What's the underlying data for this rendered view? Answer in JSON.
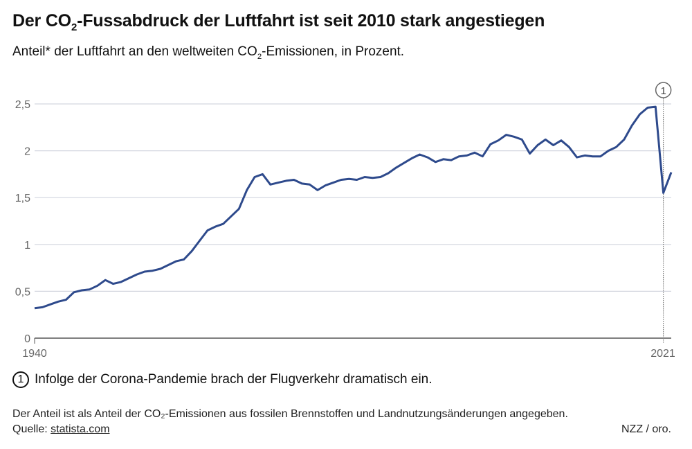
{
  "title_pre": "Der CO",
  "title_sub": "2",
  "title_post": "-Fussabdruck der Luftfahrt ist seit 2010 stark angestiegen",
  "subtitle_pre": "Anteil* der Luftfahrt an den weltweiten CO",
  "subtitle_sub": "2",
  "subtitle_post": "-Emissionen, in Prozent.",
  "annotation": {
    "marker": "1",
    "year": 2020,
    "text": "Infolge der Corona-Pandemie brach der Flugverkehr dramatisch ein."
  },
  "footnote": "Der Anteil ist als Anteil der CO₂-Emissionen aus fossilen Brennstoffen und Landnutzungsänderungen angegeben.",
  "source_label": "Quelle:",
  "source_link": "statista.com",
  "credit": "NZZ / oro.",
  "colors": {
    "line": "#2e4a8c",
    "grid": "#d3d6df"
  },
  "chart_data": {
    "type": "line",
    "title": "Der CO2-Fussabdruck der Luftfahrt ist seit 2010 stark angestiegen",
    "x_start": 1940,
    "x_ticks": [
      "1940",
      "2021"
    ],
    "y_ticks": [
      "0",
      "0,5",
      "1",
      "1,5",
      "2",
      "2,5"
    ],
    "ylim": [
      0,
      2.5
    ],
    "xlim": [
      1940,
      2021
    ],
    "grid": true,
    "values": [
      0.32,
      0.33,
      0.36,
      0.39,
      0.41,
      0.49,
      0.51,
      0.52,
      0.56,
      0.62,
      0.58,
      0.6,
      0.64,
      0.68,
      0.71,
      0.72,
      0.74,
      0.78,
      0.82,
      0.84,
      0.93,
      1.04,
      1.15,
      1.19,
      1.22,
      1.3,
      1.38,
      1.58,
      1.72,
      1.75,
      1.64,
      1.66,
      1.68,
      1.69,
      1.65,
      1.64,
      1.58,
      1.63,
      1.66,
      1.69,
      1.7,
      1.69,
      1.72,
      1.71,
      1.72,
      1.76,
      1.82,
      1.87,
      1.92,
      1.96,
      1.93,
      1.88,
      1.91,
      1.9,
      1.94,
      1.95,
      1.98,
      1.94,
      2.07,
      2.11,
      2.17,
      2.15,
      2.12,
      1.97,
      2.06,
      2.12,
      2.06,
      2.11,
      2.04,
      1.93,
      1.95,
      1.94,
      1.94,
      2.0,
      2.04,
      2.12,
      2.27,
      2.39,
      2.46,
      2.47,
      1.55,
      1.77
    ]
  }
}
